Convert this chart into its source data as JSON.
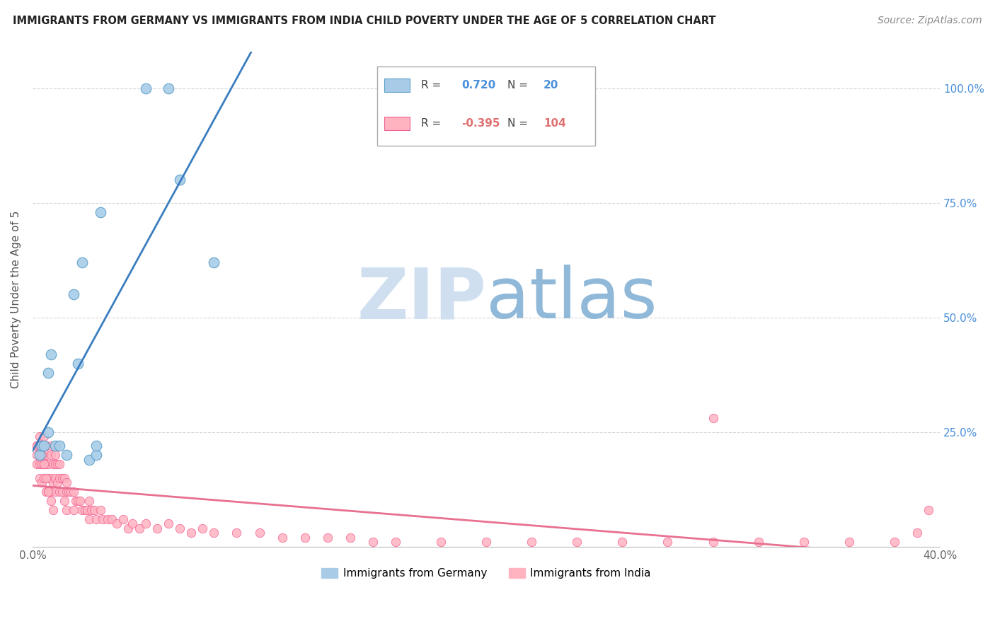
{
  "title": "IMMIGRANTS FROM GERMANY VS IMMIGRANTS FROM INDIA CHILD POVERTY UNDER THE AGE OF 5 CORRELATION CHART",
  "source": "Source: ZipAtlas.com",
  "ylabel": "Child Poverty Under the Age of 5",
  "x_min": 0.0,
  "x_max": 0.4,
  "y_min": 0.0,
  "y_max": 1.08,
  "x_ticks": [
    0.0,
    0.1,
    0.2,
    0.3,
    0.4
  ],
  "x_tick_labels_show": [
    "0.0%",
    "",
    "",
    "",
    "40.0%"
  ],
  "y_ticks": [
    0.0,
    0.25,
    0.5,
    0.75,
    1.0
  ],
  "y_tick_labels_right": [
    "",
    "25.0%",
    "50.0%",
    "75.0%",
    "100.0%"
  ],
  "germany_color": "#a8cce8",
  "india_color": "#ffb3c1",
  "germany_edge_color": "#5a9ec8",
  "india_edge_color": "#f06090",
  "trendline_germany_color": "#3a7dbf",
  "trendline_india_color": "#e87090",
  "background_color": "#ffffff",
  "watermark_color_zip": "#d0dff0",
  "watermark_color_atlas": "#90b8d8",
  "legend_R_germany_val": "0.720",
  "legend_N_germany_val": "20",
  "legend_R_india_val": "-0.395",
  "legend_N_india_val": "104",
  "legend_label_germany": "Immigrants from Germany",
  "legend_label_india": "Immigrants from India",
  "germany_x": [
    0.003,
    0.004,
    0.005,
    0.007,
    0.007,
    0.008,
    0.01,
    0.012,
    0.015,
    0.018,
    0.02,
    0.022,
    0.025,
    0.028,
    0.028,
    0.03,
    0.05,
    0.06,
    0.065,
    0.08
  ],
  "germany_y": [
    0.2,
    0.22,
    0.22,
    0.25,
    0.38,
    0.42,
    0.22,
    0.22,
    0.2,
    0.55,
    0.4,
    0.62,
    0.19,
    0.2,
    0.22,
    0.73,
    1.0,
    1.0,
    0.8,
    0.62
  ],
  "india_x": [
    0.002,
    0.002,
    0.002,
    0.003,
    0.003,
    0.003,
    0.003,
    0.004,
    0.004,
    0.004,
    0.005,
    0.005,
    0.005,
    0.005,
    0.006,
    0.006,
    0.006,
    0.006,
    0.007,
    0.007,
    0.007,
    0.008,
    0.008,
    0.008,
    0.008,
    0.009,
    0.009,
    0.01,
    0.01,
    0.01,
    0.01,
    0.011,
    0.011,
    0.012,
    0.012,
    0.012,
    0.013,
    0.013,
    0.014,
    0.014,
    0.015,
    0.015,
    0.015,
    0.016,
    0.017,
    0.018,
    0.018,
    0.019,
    0.02,
    0.021,
    0.022,
    0.023,
    0.024,
    0.025,
    0.025,
    0.026,
    0.027,
    0.028,
    0.03,
    0.031,
    0.033,
    0.035,
    0.037,
    0.04,
    0.042,
    0.044,
    0.047,
    0.05,
    0.055,
    0.06,
    0.065,
    0.07,
    0.075,
    0.08,
    0.09,
    0.1,
    0.11,
    0.12,
    0.13,
    0.14,
    0.15,
    0.16,
    0.18,
    0.2,
    0.22,
    0.24,
    0.26,
    0.28,
    0.3,
    0.32,
    0.34,
    0.36,
    0.38,
    0.39,
    0.395,
    0.002,
    0.003,
    0.004,
    0.005,
    0.006,
    0.007,
    0.008,
    0.009,
    0.3
  ],
  "india_y": [
    0.22,
    0.2,
    0.18,
    0.24,
    0.22,
    0.18,
    0.15,
    0.2,
    0.18,
    0.14,
    0.24,
    0.22,
    0.18,
    0.15,
    0.22,
    0.2,
    0.18,
    0.12,
    0.18,
    0.15,
    0.12,
    0.22,
    0.2,
    0.15,
    0.12,
    0.18,
    0.14,
    0.2,
    0.18,
    0.15,
    0.12,
    0.18,
    0.14,
    0.18,
    0.15,
    0.12,
    0.15,
    0.12,
    0.15,
    0.1,
    0.14,
    0.12,
    0.08,
    0.12,
    0.12,
    0.12,
    0.08,
    0.1,
    0.1,
    0.1,
    0.08,
    0.08,
    0.08,
    0.1,
    0.06,
    0.08,
    0.08,
    0.06,
    0.08,
    0.06,
    0.06,
    0.06,
    0.05,
    0.06,
    0.04,
    0.05,
    0.04,
    0.05,
    0.04,
    0.05,
    0.04,
    0.03,
    0.04,
    0.03,
    0.03,
    0.03,
    0.02,
    0.02,
    0.02,
    0.02,
    0.01,
    0.01,
    0.01,
    0.01,
    0.01,
    0.01,
    0.01,
    0.01,
    0.01,
    0.01,
    0.01,
    0.01,
    0.01,
    0.03,
    0.08,
    0.22,
    0.22,
    0.2,
    0.18,
    0.15,
    0.12,
    0.1,
    0.08,
    0.28
  ]
}
